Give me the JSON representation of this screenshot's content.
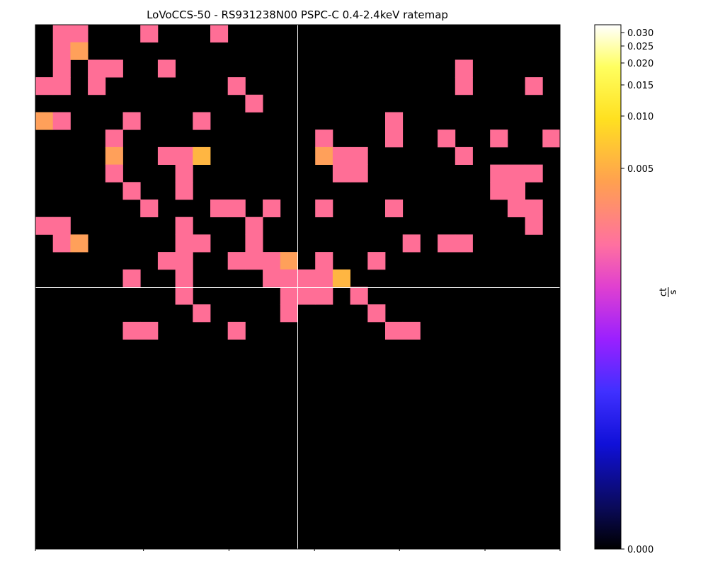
{
  "chart_data": {
    "type": "heatmap",
    "title": "LoVoCCS-50 - RS931238N00 PSPC-C 0.4-2.4keV ratemap",
    "colorbar": {
      "colormap": "gnuplot2",
      "scale": "nonlinear",
      "range": [
        0,
        0.031
      ],
      "tick_labels": [
        "0.030",
        "0.025",
        "0.020",
        "0.015",
        "0.010",
        "0.005",
        "0.000"
      ],
      "tick_values": [
        0.03,
        0.025,
        0.02,
        0.015,
        0.01,
        0.005,
        0.0
      ],
      "unit_numerator": "ct",
      "unit_denominator": "s"
    },
    "crosshair": {
      "color": "#ffffff"
    },
    "grid_shape": [
      30,
      30
    ],
    "cell_rates": {
      "0": 0.0,
      "1": 0.0027,
      "2": 0.0052,
      "3": 0.0072,
      "4": 0.0095,
      "5": 0.0145
    },
    "levels": [
      "011000100010000000000000000000",
      "012000000000000000000000000000",
      "010110010000000000000000100000",
      "110100000001000000000000100010",
      "000000000000100000000000000000",
      "210001000100000000001000000000",
      "000010000000000010001001001001",
      "000020011300000021100000100000",
      "000010001000000001100000001110",
      "000001001000000000000000001100",
      "000000100011010010001000000110",
      "110000001000100000000000000010",
      "012000001100100000000101100000",
      "000000011001112010010000000000",
      "000001001000011113000000000000",
      "000000001000001110100000000000",
      "000000000100001000010000000000",
      "000001100001000000001100000000",
      "000000000000000000000000000000",
      "000000000000000000000000000000",
      "000000000000000000000000000000",
      "000000000000000000000000000000",
      "000000000000000000000000000000",
      "000000000000000000000000000000",
      "000000000000000000000000000000",
      "000000000000000000000000000000",
      "000000000000000000000000000000",
      "000000000000000000000000000000",
      "000000000000000000000000000000",
      "000000000000000000000000000000"
    ]
  }
}
